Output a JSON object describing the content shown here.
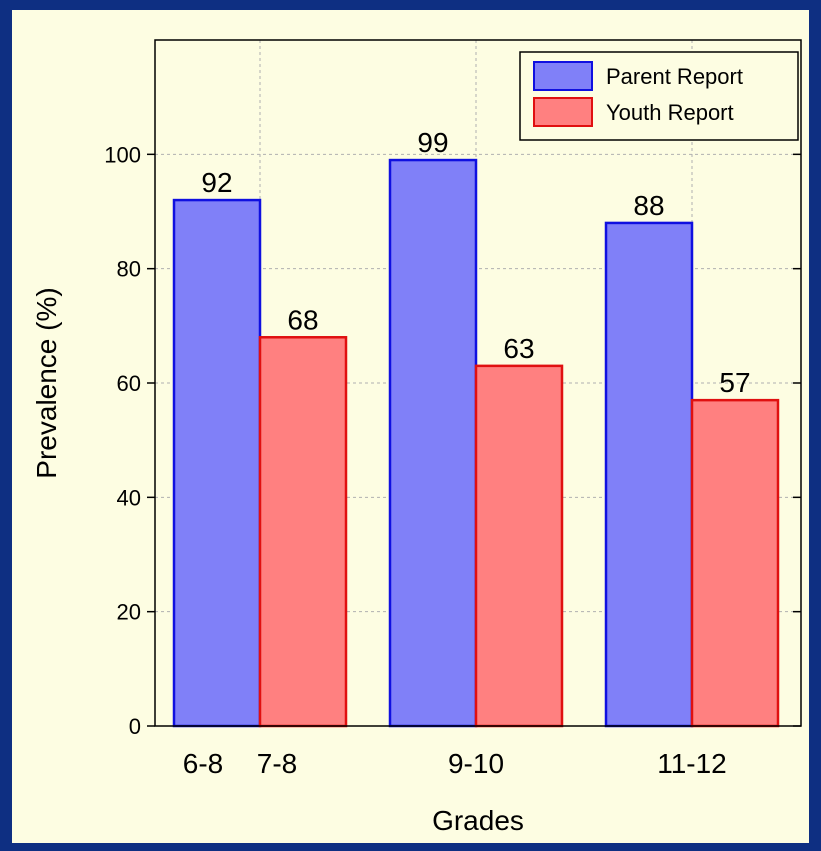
{
  "colors": {
    "page_border": "#0e2f82",
    "plot_background": "#fdfde2",
    "parent_fill": "#8080f8",
    "parent_stroke": "#1010e0",
    "youth_fill": "#ff8080",
    "youth_stroke": "#e01010",
    "grid": "#b0b0b0"
  },
  "chart_data": {
    "type": "bar",
    "xlabel": "Grades",
    "ylabel": "Prevalence (%)",
    "ylim": [
      0,
      120
    ],
    "yticks": [
      0,
      20,
      40,
      60,
      80,
      100
    ],
    "grid": true,
    "legend_position": "top-right",
    "groups": [
      {
        "bars": [
          {
            "series": "Parent Report",
            "value": 92,
            "label": "92",
            "category": "6-8"
          },
          {
            "series": "Youth Report",
            "value": 68,
            "label": "68",
            "category": "7-8"
          }
        ]
      },
      {
        "bars": [
          {
            "series": "Parent Report",
            "value": 99,
            "label": "99",
            "category": "9-10"
          },
          {
            "series": "Youth Report",
            "value": 63,
            "label": "63",
            "category": "9-10"
          }
        ]
      },
      {
        "bars": [
          {
            "series": "Parent Report",
            "value": 88,
            "label": "88",
            "category": "11-12"
          },
          {
            "series": "Youth Report",
            "value": 57,
            "label": "57",
            "category": "11-12"
          }
        ]
      }
    ],
    "category_labels": [
      "6-8",
      "7-8",
      "9-10",
      "11-12"
    ],
    "series": [
      {
        "name": "Parent Report",
        "values": [
          92,
          99,
          88
        ]
      },
      {
        "name": "Youth Report",
        "values": [
          68,
          63,
          57
        ]
      }
    ]
  }
}
